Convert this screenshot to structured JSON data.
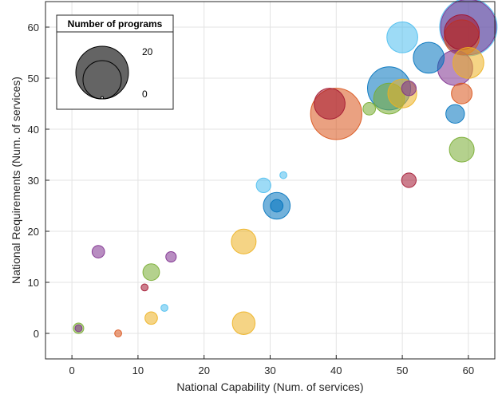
{
  "chart_data": {
    "type": "scatter",
    "title": "",
    "xlabel": "National Capability (Num. of services)",
    "ylabel": "National Requirements (Num. of services)",
    "xlim": [
      -4,
      64
    ],
    "ylim": [
      -5,
      65
    ],
    "xticks": [
      0,
      10,
      20,
      30,
      40,
      50,
      60
    ],
    "yticks": [
      0,
      10,
      20,
      30,
      40,
      50,
      60
    ],
    "grid": true,
    "size_legend": {
      "title": "Number of programs",
      "placement": "top-left",
      "entries": [
        {
          "label": "20",
          "size": 20
        },
        {
          "label": "0",
          "size": 0
        }
      ]
    },
    "colors": {
      "blue": "#0072BD",
      "orange": "#D95319",
      "yellow": "#EDB120",
      "purple": "#7E2F8E",
      "green": "#77AC30",
      "cyan": "#4DBEEE",
      "darkred": "#A2142F"
    },
    "points": [
      {
        "x": 1,
        "y": 1,
        "size": 2,
        "color": "green"
      },
      {
        "x": 1,
        "y": 1,
        "size": 0.3,
        "color": "purple"
      },
      {
        "x": 7,
        "y": 0,
        "size": 0.3,
        "color": "orange"
      },
      {
        "x": 4,
        "y": 16,
        "size": 3,
        "color": "purple"
      },
      {
        "x": 11,
        "y": 9,
        "size": 0.3,
        "color": "darkred"
      },
      {
        "x": 12,
        "y": 12,
        "size": 5,
        "color": "green"
      },
      {
        "x": 12,
        "y": 3,
        "size": 3,
        "color": "yellow"
      },
      {
        "x": 14,
        "y": 5,
        "size": 0.3,
        "color": "cyan"
      },
      {
        "x": 15,
        "y": 15,
        "size": 2,
        "color": "purple"
      },
      {
        "x": 26,
        "y": 18,
        "size": 9,
        "color": "yellow"
      },
      {
        "x": 26,
        "y": 2,
        "size": 8,
        "color": "yellow"
      },
      {
        "x": 29,
        "y": 29,
        "size": 4,
        "color": "cyan"
      },
      {
        "x": 31,
        "y": 25,
        "size": 10,
        "color": "blue"
      },
      {
        "x": 31,
        "y": 25,
        "size": 3,
        "color": "blue"
      },
      {
        "x": 32,
        "y": 31,
        "size": 0.3,
        "color": "cyan"
      },
      {
        "x": 40,
        "y": 43,
        "size": 22,
        "color": "orange"
      },
      {
        "x": 39,
        "y": 45,
        "size": 12,
        "color": "darkred"
      },
      {
        "x": 45,
        "y": 44,
        "size": 3,
        "color": "green"
      },
      {
        "x": 48,
        "y": 46,
        "size": 12,
        "color": "green"
      },
      {
        "x": 50,
        "y": 47,
        "size": 11,
        "color": "yellow"
      },
      {
        "x": 51,
        "y": 48,
        "size": 4,
        "color": "purple"
      },
      {
        "x": 48,
        "y": 48,
        "size": 18,
        "color": "blue"
      },
      {
        "x": 50,
        "y": 58,
        "size": 12,
        "color": "cyan"
      },
      {
        "x": 54,
        "y": 54,
        "size": 12,
        "color": "blue"
      },
      {
        "x": 51,
        "y": 30,
        "size": 4,
        "color": "darkred"
      },
      {
        "x": 58,
        "y": 43,
        "size": 6,
        "color": "blue"
      },
      {
        "x": 59,
        "y": 36,
        "size": 9,
        "color": "green"
      },
      {
        "x": 59,
        "y": 47,
        "size": 7,
        "color": "orange"
      },
      {
        "x": 60,
        "y": 53,
        "size": 12,
        "color": "yellow"
      },
      {
        "x": 59,
        "y": 58,
        "size": 14,
        "color": "orange"
      },
      {
        "x": 59,
        "y": 59,
        "size": 14,
        "color": "darkred"
      },
      {
        "x": 60,
        "y": 60,
        "size": 25,
        "color": "cyan"
      },
      {
        "x": 60,
        "y": 60,
        "size": 24,
        "color": "purple"
      },
      {
        "x": 58,
        "y": 52,
        "size": 14,
        "color": "purple"
      }
    ]
  }
}
